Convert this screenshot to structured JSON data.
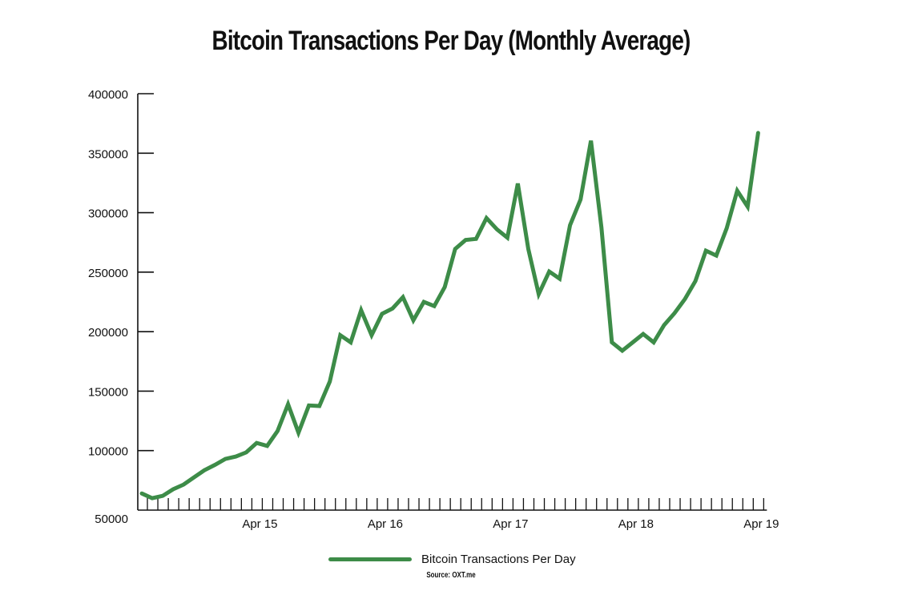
{
  "chart_data": {
    "type": "line",
    "title": "Bitcoin Transactions Per Day (Monthly Average)",
    "xlabel": "",
    "ylabel": "",
    "ylim": [
      50000,
      400000
    ],
    "yticks": [
      50000,
      100000,
      150000,
      200000,
      250000,
      300000,
      350000,
      400000
    ],
    "ytick_labels": [
      "50000",
      "100000",
      "150000",
      "200000",
      "250000",
      "300000",
      "350000",
      "400000"
    ],
    "xtick_labels": [
      "Apr 15",
      "Apr 16",
      "Apr 17",
      "Apr 18",
      "Apr 19"
    ],
    "xtick_label_month_index": [
      11,
      23,
      35,
      47,
      59
    ],
    "x_month_count": 60,
    "grid": false,
    "legend_position": "bottom-center",
    "series": [
      {
        "name": "Bitcoin Transactions Per Day",
        "color": "#3d8c48",
        "values": [
          64000,
          60000,
          62000,
          67500,
          71500,
          77500,
          83500,
          88000,
          93000,
          95000,
          98500,
          106500,
          104000,
          116500,
          139000,
          115000,
          138000,
          137500,
          158000,
          197000,
          191000,
          218000,
          197000,
          215000,
          219500,
          229000,
          209500,
          225000,
          221500,
          237500,
          269500,
          277000,
          278000,
          295500,
          286000,
          279000,
          324500,
          269500,
          231500,
          250500,
          244500,
          289500,
          311000,
          360500,
          287500,
          191000,
          184000,
          191000,
          198000,
          191000,
          205500,
          215500,
          227500,
          242500,
          268000,
          264000,
          287000,
          318500,
          305000,
          367000
        ]
      }
    ],
    "source": "Source: OXT.me"
  },
  "colors": {
    "line": "#3d8c48",
    "axis": "#111111"
  }
}
